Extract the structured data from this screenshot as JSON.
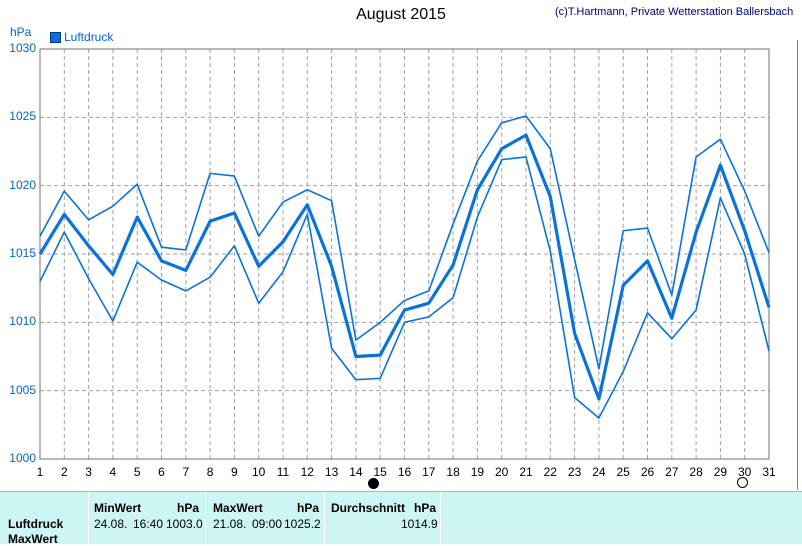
{
  "header": {
    "title": "August 2015",
    "copyright": "(c)T.Hartmann, Private Wetterstation Ballersbach"
  },
  "chart_data": {
    "type": "line",
    "title": "August 2015",
    "ylabel": "hPa",
    "ylim": [
      1000,
      1030
    ],
    "xlim": [
      1,
      31
    ],
    "yticks": [
      "1000",
      "1005",
      "1010",
      "1015",
      "1020",
      "1025",
      "1030"
    ],
    "xticks": [
      "1",
      "2",
      "3",
      "4",
      "5",
      "6",
      "7",
      "8",
      "9",
      "10",
      "11",
      "12",
      "13",
      "14",
      "15",
      "16",
      "17",
      "18",
      "19",
      "20",
      "21",
      "22",
      "23",
      "24",
      "25",
      "26",
      "27",
      "28",
      "29",
      "30",
      "31"
    ],
    "grid": true,
    "legend": "top-left",
    "legend_label": "Luftdruck",
    "x": [
      1,
      2,
      3,
      4,
      5,
      6,
      7,
      8,
      9,
      10,
      11,
      12,
      13,
      14,
      15,
      16,
      17,
      18,
      19,
      20,
      21,
      22,
      23,
      24,
      25,
      26,
      27,
      28,
      29,
      30,
      31
    ],
    "series": [
      {
        "role": "max",
        "width": 1.6,
        "values": [
          1016.3,
          1019.6,
          1017.5,
          1018.5,
          1020.1,
          1015.5,
          1015.3,
          1020.9,
          1020.7,
          1016.3,
          1018.8,
          1019.7,
          1018.9,
          1008.7,
          1010.0,
          1011.6,
          1012.3,
          1017.2,
          1021.8,
          1024.6,
          1025.1,
          1022.7,
          1014.6,
          1006.6,
          1016.7,
          1016.9,
          1012.0,
          1022.1,
          1023.4,
          1019.6,
          1015.1
        ]
      },
      {
        "role": "avg",
        "width": 3.2,
        "values": [
          1015.0,
          1017.9,
          1015.6,
          1013.5,
          1017.7,
          1014.5,
          1013.8,
          1017.4,
          1018.0,
          1014.1,
          1015.9,
          1018.6,
          1014.1,
          1007.5,
          1007.6,
          1010.9,
          1011.4,
          1014.2,
          1019.7,
          1022.7,
          1023.7,
          1019.2,
          1009.2,
          1004.4,
          1012.7,
          1014.5,
          1010.3,
          1016.6,
          1021.5,
          1016.7,
          1011.1
        ]
      },
      {
        "role": "min",
        "width": 1.6,
        "values": [
          1013.0,
          1016.6,
          1013.2,
          1010.1,
          1014.4,
          1013.1,
          1012.3,
          1013.3,
          1015.6,
          1011.4,
          1013.7,
          1017.9,
          1008.1,
          1005.8,
          1005.9,
          1010.0,
          1010.4,
          1011.8,
          1017.7,
          1021.9,
          1022.1,
          1015.2,
          1004.5,
          1003.0,
          1006.4,
          1010.7,
          1008.8,
          1010.9,
          1019.1,
          1015.0,
          1007.9
        ]
      }
    ],
    "markers": [
      {
        "x": 15,
        "kind": "filled"
      },
      {
        "x": 30,
        "kind": "open"
      }
    ],
    "colors": {
      "line": "#0a73db",
      "grid": "#a0a0a0",
      "axis_text": "#0066cc"
    }
  },
  "stats": {
    "row_labels": [
      "Luftdruck",
      "MaxWert"
    ],
    "min": {
      "label": "MinWert",
      "unit": "hPa",
      "date": "24.08.",
      "time": "16:40",
      "value": "1003.0"
    },
    "max": {
      "label": "MaxWert",
      "unit": "hPa",
      "date": "21.08.",
      "time": "09:00",
      "value": "1025.2"
    },
    "avg": {
      "label": "Durchschnitt",
      "unit": "hPa",
      "value": "1014.9"
    }
  }
}
